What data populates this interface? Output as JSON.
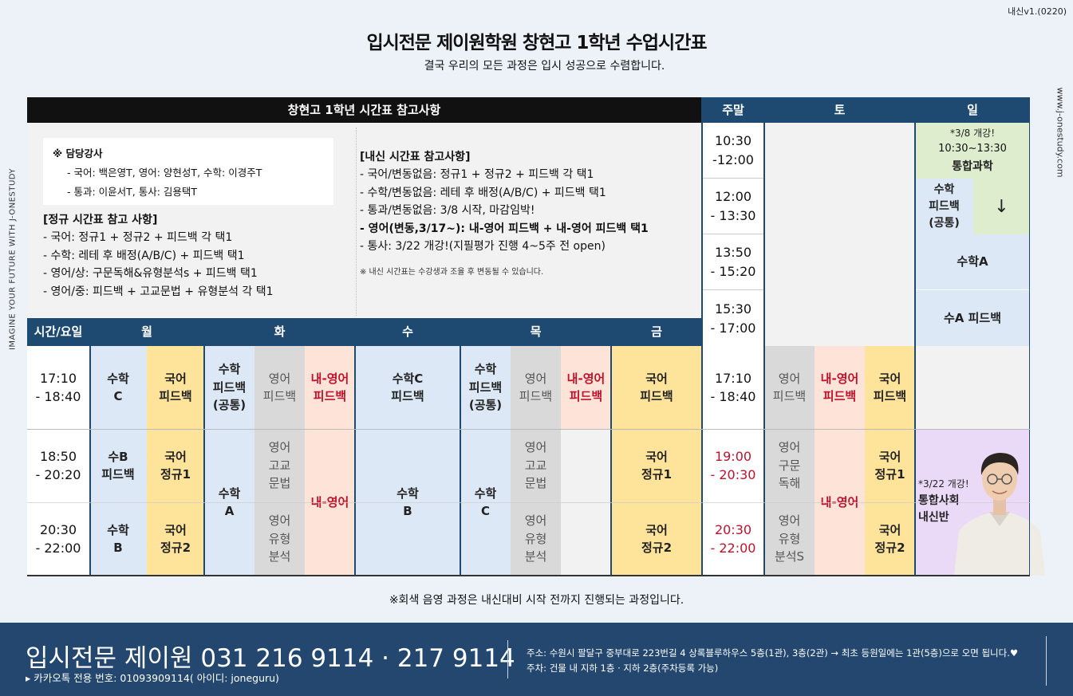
{
  "version": "내신v1.(0220)",
  "title": "입시전문 제이원학원 창현고 1학년 수업시간표",
  "subtitle": "결국 우리의 모든 과정은 입시 성공으로 수렴합니다.",
  "side_left": "IMAGINE YOUR FUTURE WITH J-ONESTUDY",
  "side_right": "www.j-onestudy.com",
  "notes": {
    "header": "창현고 1학년 시간표 참고사항",
    "teachers_title": "※ 담당강사",
    "teachers_line1": "- 국어: 백은영T,  영어: 양현성T,  수학: 이경주T",
    "teachers_line2": "- 통과: 이윤서T,  통사: 김용택T",
    "regular_title": "[정규 시간표 참고 사항]",
    "regular_lines": [
      "- 국어: 정규1 + 정규2 + 피드백 각 택1",
      "- 수학: 레테 후 배정(A/B/C) + 피드백 택1",
      "- 영어/상: 구문독해&유형분석s + 피드백 택1",
      "- 영어/중: 피드백 + 고교문법 + 유형분석 각 택1"
    ],
    "naesin_title": "[내신 시간표 참고사항]",
    "naesin_lines": [
      "- 국어/변동없음: 정규1 + 정규2 + 피드백 각 택1",
      "- 수학/변동없음: 레테 후 배정(A/B/C) + 피드백 택1",
      "- 통과/변동없음: 3/8 시작, 마감임박!"
    ],
    "naesin_bold": "- 영어(변동,3/17~): 내-영어 피드백 + 내-영어 피드백 택1",
    "naesin_last": "- 통사: 3/22 개강!(지필평가 진행 4~5주 전 open)",
    "naesin_note": "※ 내신 시간표는 수강생과 조율 후 변동될 수 있습니다."
  },
  "headers": {
    "time_day": "시간/요일",
    "mon": "월",
    "tue": "화",
    "wed": "수",
    "thu": "목",
    "fri": "금",
    "weekend": "주말",
    "sat": "토",
    "sun": "일"
  },
  "weekend_times": [
    "10:30\n-12:00",
    "12:00\n- 13:30",
    "13:50\n- 15:20",
    "15:30\n- 17:00"
  ],
  "sun_top": {
    "integ_note": "*3/8 개강!",
    "integ_time": "10:30~13:30",
    "integ_name": "통합과학",
    "math_fb": "수학\n피드백\n(공통)",
    "arrow": "↓",
    "math_a": "수학A",
    "math_a_fb": "수A 피드백"
  },
  "weekday_times": [
    "17:10\n- 18:40",
    "18:50\n- 20:20",
    "20:30\n- 22:00"
  ],
  "weekend_lower_times": [
    "17:10\n- 18:40",
    "19:00\n- 20:30",
    "20:30\n- 22:00"
  ],
  "cells": {
    "mon_math_c": "수학\nC",
    "mon_kor_fb": "국어\n피드백",
    "mon_math_b_fb": "수B\n피드백",
    "mon_kor_reg1": "국어\n정규1",
    "mon_math_b": "수학\nB",
    "mon_kor_reg2": "국어\n정규2",
    "tue_math_fb": "수학\n피드백\n(공통)",
    "tue_eng_fb": "영어\n피드백",
    "tue_naeeng_fb": "내-영어\n피드백",
    "tue_math_a": "수학\nA",
    "tue_eng_grammar": "영어\n고교\n문법",
    "tue_eng_type": "영어\n유형\n분석",
    "tue_naeeng": "내-영어",
    "wed_math_c": "수학C\n피드백",
    "wed_math_b": "수학\nB",
    "thu_math_fb": "수학\n피드백\n(공통)",
    "thu_eng_fb": "영어\n피드백",
    "thu_naeeng_fb": "내-영어\n피드백",
    "thu_math_c": "수학\nC",
    "thu_eng_grammar": "영어\n고교\n문법",
    "thu_eng_type": "영어\n유형\n분석",
    "fri_kor_fb": "국어\n피드백",
    "fri_kor_reg1": "국어\n정규1",
    "fri_kor_reg2": "국어\n정규2",
    "sat_eng_fb": "영어\n피드백",
    "sat_naeeng_fb": "내-영어\n피드백",
    "sat_kor_fb": "국어\n피드백",
    "sat_eng_reading": "영어\n구문\n독해",
    "sat_eng_type": "영어\n유형\n분석S",
    "sat_naeeng": "내-영어",
    "sat_kor_reg1": "국어\n정규1",
    "sat_kor_reg2": "국어\n정규2",
    "sun_social_note": "*3/22 개강!",
    "sun_social": "통합사회\n내신반"
  },
  "notice": "※회색 음영 과정은 내신대비 시작 전까지 진행되는 과정입니다.",
  "footer": {
    "brand_phone": "입시전문 제이원 031 216 9114 · 217 9114",
    "kakao": "▸ 카카오톡 전용 번호: 01093909114( 아이디: joneguru)",
    "address": "주소: 수원시 팔달구 중부대로 223번길 4 상록블루하우스 5층(1관), 3층(2관) → 최초 등원일에는 1관(5층)으로 오면 됩니다.♥",
    "parking": "주차: 건물 내 지하 1층 · 지하 2층(주차등록 가능)"
  }
}
